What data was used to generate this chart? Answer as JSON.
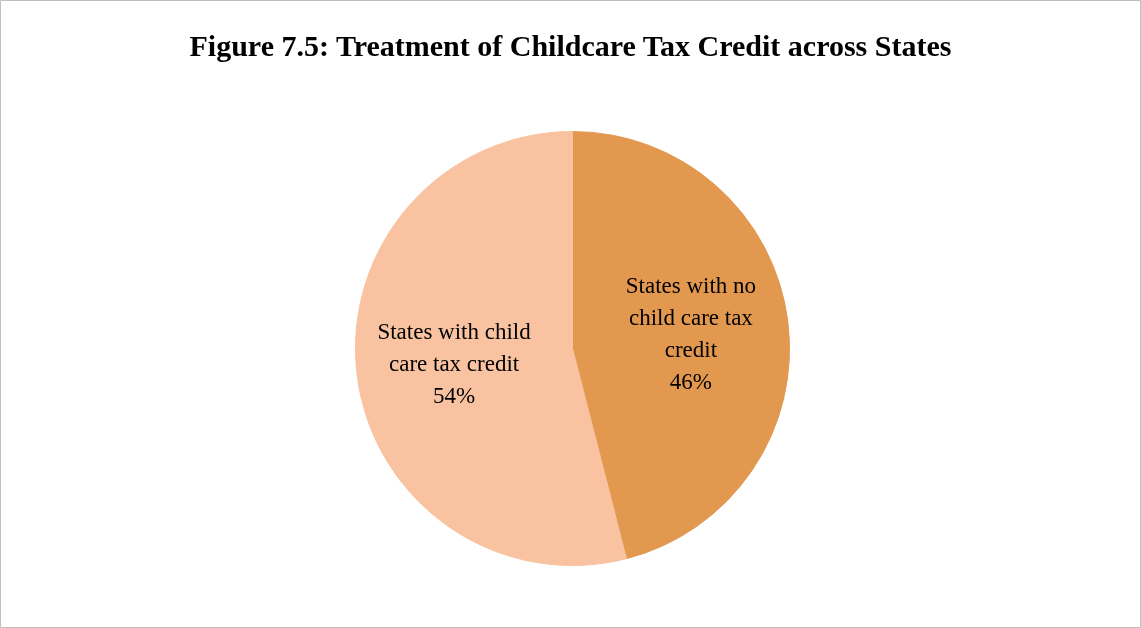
{
  "chart_data": {
    "type": "pie",
    "title": "Figure 7.5: Treatment of Childcare Tax Credit across States",
    "categories": [
      "States with no child care tax credit",
      "States with child care tax credit"
    ],
    "values": [
      46,
      54
    ],
    "value_labels": [
      "46%",
      "54%"
    ],
    "colors": [
      "#e2984f",
      "#f9c3a1"
    ]
  }
}
